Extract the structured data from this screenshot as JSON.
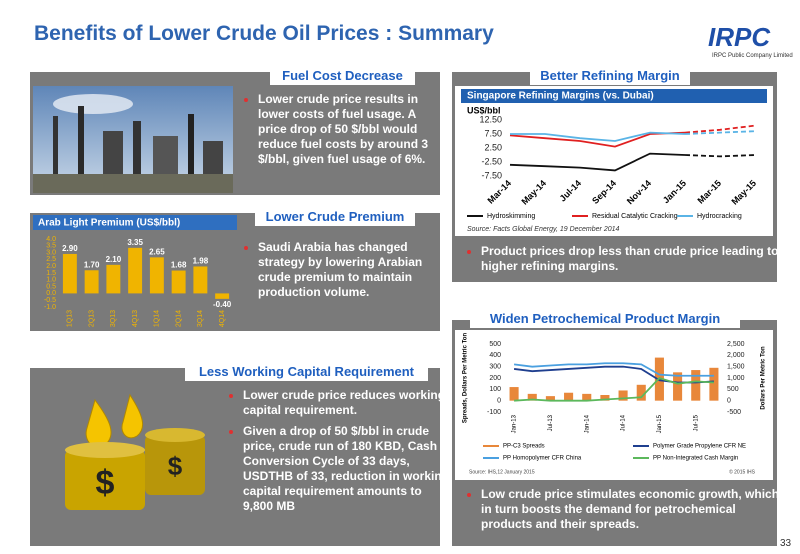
{
  "title": "Benefits of Lower Crude Oil Prices : Summary",
  "logo": {
    "name": "IRPC",
    "subtitle": "IRPC Public Company Limited"
  },
  "page_number": "33",
  "sections": {
    "fuel_cost": {
      "header": "Fuel Cost Decrease",
      "bullets": [
        "Lower crude price results in lower costs of fuel usage. A price drop of 50 $/bbl  would reduce fuel costs  by around  3 $/bbl, given fuel usage of 6%."
      ]
    },
    "crude_premium": {
      "header": "Lower Crude Premium",
      "bullets": [
        "Saudi Arabia has changed strategy by lowering Arabian crude premium to maintain production volume."
      ]
    },
    "working_capital": {
      "header": "Less Working Capital Requirement",
      "drum_symbol": "$",
      "bullets": [
        "Lower crude price reduces working capital requirement.",
        "Given a drop of 50 $/bbl in crude price, crude run of 180 KBD, Cash Conversion Cycle of 33 days,  USDTHB of 33, reduction in working capital requirement  amounts to 9,800 MB"
      ]
    },
    "refining_margin": {
      "header": "Better Refining Margin",
      "bullets": [
        "Product prices drop less than crude price leading to higher refining margins."
      ]
    },
    "petrochemical": {
      "header": "Widen Petrochemical Product Margin",
      "bullets": [
        "Low crude price  stimulates economic growth, which in turn boosts the demand for petrochemical products and their spreads."
      ]
    }
  },
  "chart_data": [
    {
      "type": "bar",
      "title": "Arab Light Premium (US$/bbl)",
      "categories": [
        "1Q13",
        "2Q13",
        "3Q13",
        "4Q13",
        "1Q14",
        "2Q14",
        "3Q14",
        "4Q14"
      ],
      "values": [
        2.9,
        1.7,
        2.1,
        3.35,
        2.65,
        1.68,
        1.98,
        -0.4
      ],
      "value_labels": [
        "2.90",
        "1.70",
        "2.10",
        "3.35",
        "2.65",
        "1.68",
        "1.98",
        "-0.40"
      ],
      "color": "#f0b400",
      "ylim": [
        -1,
        4
      ],
      "yticks": [
        {
          "value": -1,
          "label": "-1.0"
        },
        {
          "value": -0.5,
          "label": "-0.5"
        },
        {
          "value": 0,
          "label": "0.0"
        },
        {
          "value": 0.5,
          "label": "0.5"
        },
        {
          "value": 1,
          "label": "1.0"
        },
        {
          "value": 1.5,
          "label": "1.5"
        },
        {
          "value": 2,
          "label": "2.0"
        },
        {
          "value": 2.5,
          "label": "2.5"
        },
        {
          "value": 3,
          "label": "3.0"
        },
        {
          "value": 3.5,
          "label": "3.5"
        },
        {
          "value": 4,
          "label": "4.0"
        }
      ]
    },
    {
      "type": "line",
      "title": "Singapore Refining Margins (vs. Dubai)",
      "y_label": "US$/bbl",
      "source": "Source: Facts Global Energy, 19 December 2014",
      "categories": [
        "Mar-14",
        "May-14",
        "Jul-14",
        "Sep-14",
        "Nov-14",
        "Jan-15",
        "Mar-15",
        "May-15"
      ],
      "dashed_from": 5,
      "series": [
        {
          "name": "Hydroskimming",
          "color": "#111111",
          "values": [
            -3.5,
            -4,
            -4.5,
            -5.5,
            0.5,
            0,
            -0.5,
            0
          ]
        },
        {
          "name": "Residual Catalytic Cracking",
          "color": "#e02020",
          "values": [
            7,
            6,
            5,
            3,
            7.5,
            8,
            9,
            10.5
          ]
        },
        {
          "name": "Hydrocracking",
          "color": "#5ab4e6",
          "values": [
            7.5,
            7.5,
            6,
            5,
            8,
            7.5,
            8,
            8.5
          ]
        }
      ],
      "ylim": [
        -7.5,
        12.5
      ],
      "yticks": [
        {
          "value": 12.5,
          "label": "12.50"
        },
        {
          "value": 7.5,
          "label": "7.50"
        },
        {
          "value": 2.5,
          "label": "2.50"
        },
        {
          "value": -2.5,
          "label": "-2.50"
        },
        {
          "value": -7.5,
          "label": "-7.50"
        }
      ]
    },
    {
      "type": "combo",
      "y_label": "Spreads, Dollars Per Metric Ton",
      "y2_label": "Dollars Per Metric Ton",
      "source": "Source: IHS,12 January 2015",
      "copyright": "© 2015 IHS",
      "categories": [
        "Jan-13",
        null,
        "Jul-13",
        null,
        "Jan-14",
        null,
        "Jul-14",
        null,
        "Jan-15",
        null,
        "Jul-15",
        null
      ],
      "series": [
        {
          "name": "PP-C3 Spreads",
          "kind": "bar",
          "color": "#e8873a",
          "values": [
            120,
            60,
            40,
            70,
            60,
            50,
            90,
            140,
            380,
            250,
            270,
            290
          ]
        },
        {
          "name": "Polymer Grade Propylene CFR NE",
          "kind": "line",
          "axis": "y2",
          "color": "#1f3f8f",
          "values": [
            1400,
            1300,
            1350,
            1400,
            1450,
            1500,
            1500,
            1400,
            900,
            800,
            800,
            850
          ]
        },
        {
          "name": "PP Homopolymer CFR China",
          "kind": "line",
          "axis": "y2",
          "color": "#4aa0e0",
          "values": [
            1600,
            1500,
            1550,
            1600,
            1600,
            1650,
            1650,
            1600,
            1150,
            1100,
            1100,
            1100
          ]
        },
        {
          "name": "PP Non-Integrated Cash Margin",
          "kind": "line",
          "color": "#5cb85c",
          "values": [
            0,
            10,
            0,
            0,
            0,
            10,
            20,
            30,
            200,
            150,
            170,
            160
          ]
        }
      ],
      "ylim": [
        -100,
        500
      ],
      "yticks": [
        -100,
        0,
        100,
        200,
        300,
        400,
        500
      ],
      "y2lim": [
        -500,
        2500
      ],
      "y2ticks": [
        -500,
        0,
        500,
        {
          "value": 1000,
          "label": "1,000"
        },
        {
          "value": 1500,
          "label": "1,500"
        },
        {
          "value": 2000,
          "label": "2,000"
        },
        {
          "value": 2500,
          "label": "2,500"
        }
      ]
    }
  ]
}
